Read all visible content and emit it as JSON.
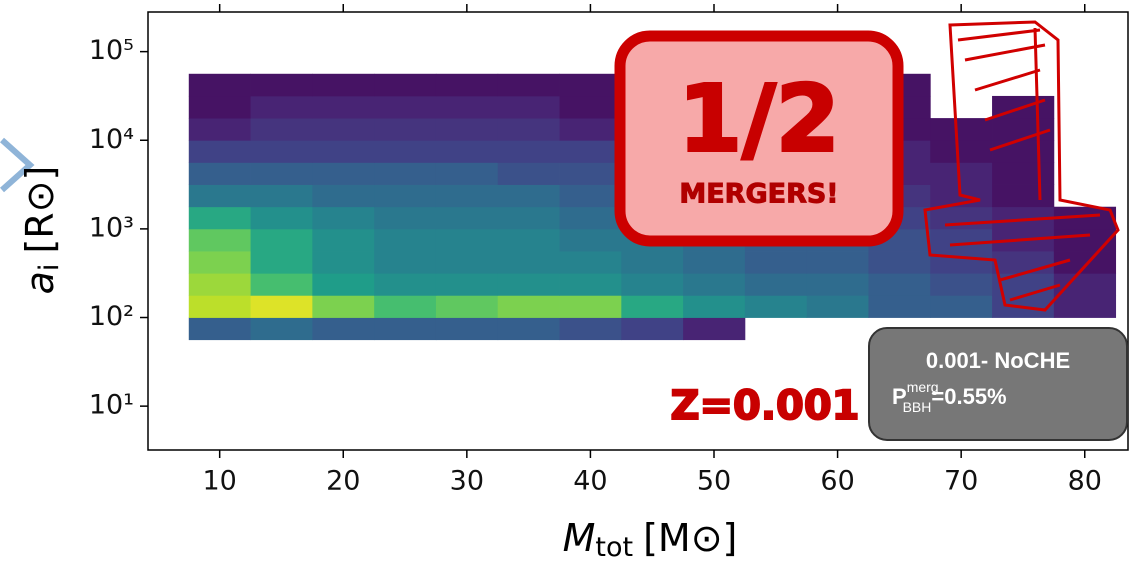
{
  "chart_data": {
    "type": "hist2d",
    "colormap": "viridis",
    "xlim": [
      4.2,
      83.5
    ],
    "ylim": [
      3.2,
      280000
    ],
    "log_y": true,
    "xticks": [
      10,
      20,
      30,
      40,
      50,
      60,
      70,
      80
    ],
    "yticks": [
      {
        "value": 10,
        "label": "10¹"
      },
      {
        "value": 100,
        "label": "10²"
      },
      {
        "value": 1000,
        "label": "10³"
      },
      {
        "value": 10000,
        "label": "10⁴"
      },
      {
        "value": 100000,
        "label": "10⁵"
      }
    ],
    "x_label": {
      "symbol": "M",
      "subscript": "tot",
      "unit": "[M⊙]"
    },
    "y_label": {
      "symbol": "a",
      "subscript": "i",
      "unit": "[R⊙]"
    },
    "xbins": [
      7.5,
      12.5,
      17.5,
      22.5,
      27.5,
      32.5,
      37.5,
      42.5,
      47.5,
      52.5,
      57.5,
      62.5,
      67.5,
      72.5,
      77.5,
      82.5
    ],
    "ybins": [
      56.2,
      100,
      178,
      316,
      562,
      1000,
      1778,
      3162,
      5623,
      10000,
      17783,
      31623,
      56234
    ],
    "counts": [
      [
        0.3,
        0.35,
        0.3,
        0.3,
        0.3,
        0.3,
        0.25,
        0.2,
        0.1,
        0,
        0,
        0,
        0,
        0,
        0
      ],
      [
        0.9,
        0.95,
        0.8,
        0.7,
        0.75,
        0.8,
        0.8,
        0.6,
        0.5,
        0.45,
        0.4,
        0.3,
        0.3,
        0.2,
        0.1
      ],
      [
        0.85,
        0.7,
        0.55,
        0.5,
        0.5,
        0.5,
        0.5,
        0.45,
        0.4,
        0.35,
        0.35,
        0.3,
        0.25,
        0.2,
        0.1
      ],
      [
        0.8,
        0.6,
        0.5,
        0.45,
        0.45,
        0.45,
        0.45,
        0.4,
        0.35,
        0.3,
        0.3,
        0.25,
        0.2,
        0.15,
        0.05
      ],
      [
        0.75,
        0.6,
        0.5,
        0.45,
        0.45,
        0.45,
        0.4,
        0.4,
        0.35,
        0.3,
        0.3,
        0.25,
        0.2,
        0.1,
        0.05
      ],
      [
        0.6,
        0.5,
        0.45,
        0.4,
        0.4,
        0.4,
        0.35,
        0.35,
        0.3,
        0.3,
        0.25,
        0.2,
        0.15,
        0.1,
        0.05
      ],
      [
        0.4,
        0.4,
        0.35,
        0.35,
        0.35,
        0.35,
        0.3,
        0.3,
        0.25,
        0.25,
        0.2,
        0.15,
        0.1,
        0.05,
        0
      ],
      [
        0.3,
        0.3,
        0.3,
        0.3,
        0.3,
        0.25,
        0.25,
        0.25,
        0.2,
        0.2,
        0.15,
        0.1,
        0.1,
        0.05,
        0
      ],
      [
        0.2,
        0.2,
        0.2,
        0.2,
        0.2,
        0.2,
        0.2,
        0.15,
        0.15,
        0.15,
        0.1,
        0.1,
        0.05,
        0.05,
        0
      ],
      [
        0.1,
        0.15,
        0.15,
        0.15,
        0.15,
        0.15,
        0.1,
        0.1,
        0.1,
        0.1,
        0.05,
        0.05,
        0.05,
        0.05,
        0
      ],
      [
        0.05,
        0.1,
        0.1,
        0.1,
        0.1,
        0.1,
        0.05,
        0.05,
        0.05,
        0.05,
        0.05,
        0.05,
        0,
        0.05,
        0
      ],
      [
        0.05,
        0.05,
        0.05,
        0.05,
        0.05,
        0.05,
        0.05,
        0.05,
        0.05,
        0.05,
        0,
        0.05,
        0,
        0,
        0
      ]
    ],
    "callout": {
      "fraction": "1/2",
      "text": "MERGERS!"
    },
    "metallicity_label": "Z=0.001",
    "info_box": {
      "model": "0.001- NoCHE",
      "symbol": "P",
      "superscript": "merg",
      "subscript": "BBH",
      "value_text": "=0.55%"
    }
  }
}
